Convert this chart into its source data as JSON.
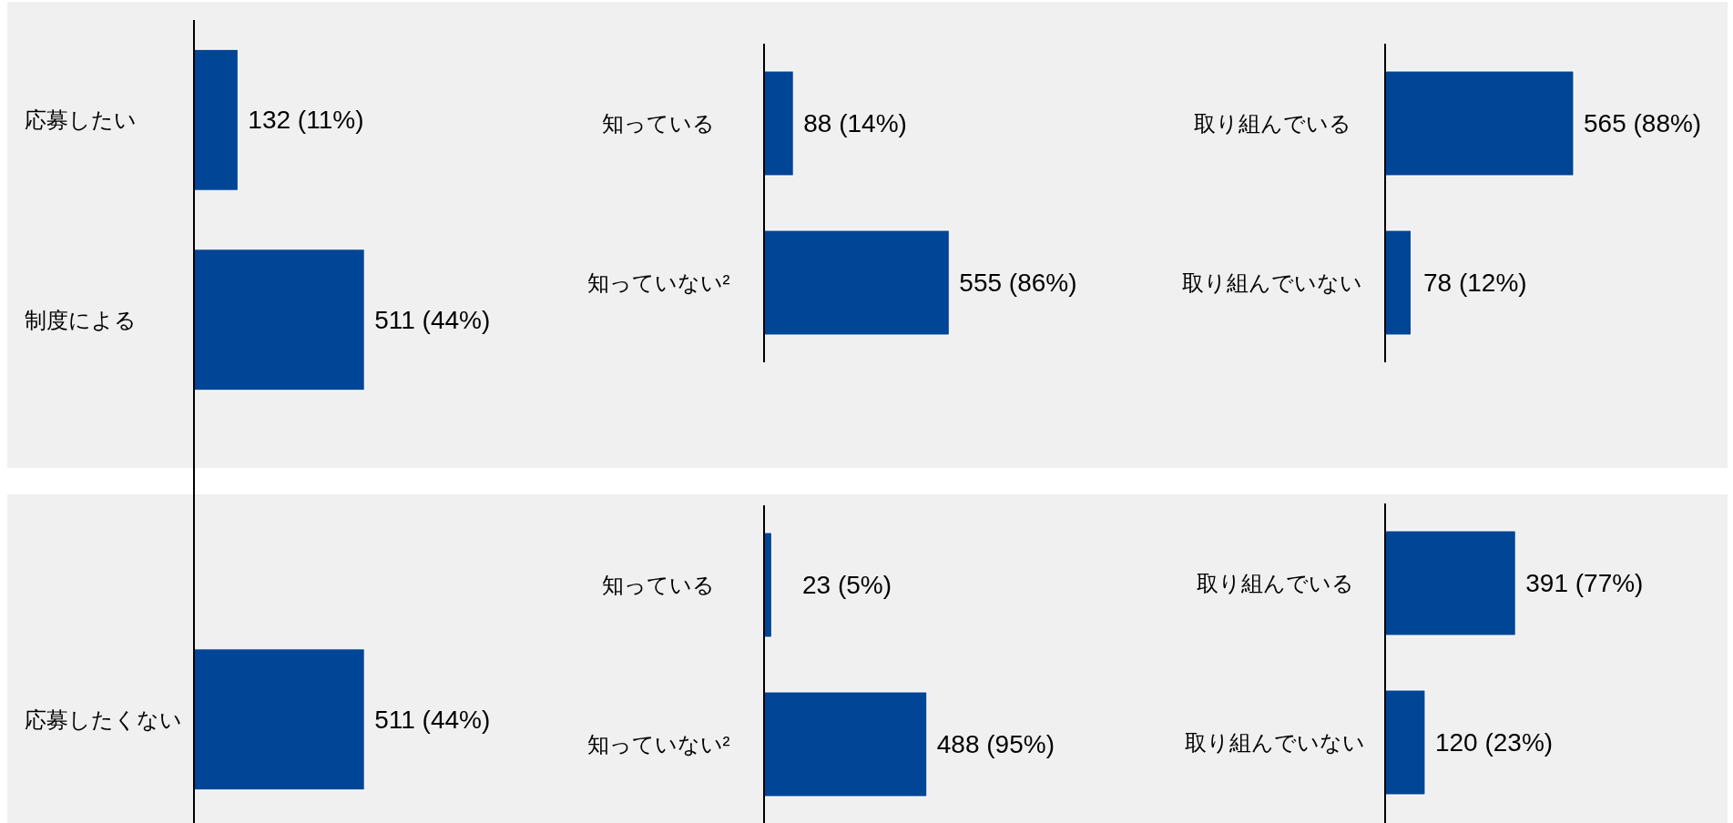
{
  "chart_data": [
    {
      "type": "bar",
      "orientation": "horizontal",
      "categories": [
        "応募したい",
        "制度による",
        null,
        "応募したくない"
      ],
      "values": [
        132,
        511,
        null,
        511
      ],
      "value_labels": [
        "132 (11%)",
        "511 (44%)",
        null,
        "511 (44%)"
      ],
      "color": "#014596",
      "tick_labels": "y"
    },
    {
      "type": "bar",
      "orientation": "horizontal",
      "categories": [
        "知っている",
        "知っていない²"
      ],
      "values": [
        88,
        555
      ],
      "value_labels": [
        "88 (14%)",
        "555 (86%)"
      ],
      "color": "#014596",
      "tick_labels": "y"
    },
    {
      "type": "bar",
      "orientation": "horizontal",
      "categories": [
        "取り組んでいる",
        "取り組んでいない"
      ],
      "values": [
        565,
        78
      ],
      "value_labels": [
        "565 (88%)",
        "78 (12%)"
      ],
      "color": "#014596",
      "tick_labels": "y"
    },
    {
      "type": "bar",
      "orientation": "horizontal",
      "categories": [
        "知っている",
        "知っていない²"
      ],
      "values": [
        23,
        488
      ],
      "value_labels": [
        "23 (5%)",
        "488 (95%)"
      ],
      "color": "#014596",
      "tick_labels": "y"
    },
    {
      "type": "bar",
      "orientation": "horizontal",
      "categories": [
        "取り組んでいる",
        "取り組んでいない"
      ],
      "values": [
        391,
        120
      ],
      "value_labels": [
        "391 (77%)",
        "120 (23%)"
      ],
      "color": "#014596",
      "tick_labels": "y"
    }
  ]
}
